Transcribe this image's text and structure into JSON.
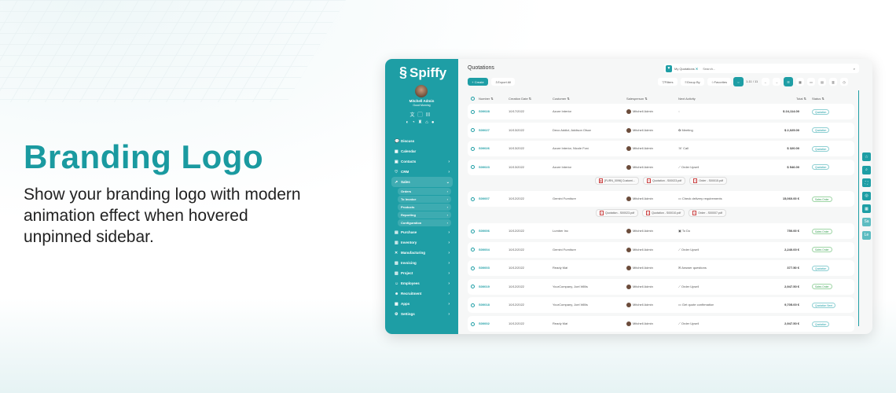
{
  "hero": {
    "title": "Branding Logo",
    "description": "Show your branding logo with modern animation effect when hovered unpinned sidebar."
  },
  "colors": {
    "accent": "#1e9ea5",
    "title": "#1a9aa0"
  },
  "sidebar": {
    "logo": "Spiffy",
    "user": "Mitchell Admin",
    "greeting": "Good Morning",
    "icons_row1": [
      "translate-icon",
      "lock-icon",
      "grid-icon"
    ],
    "icons_row2": [
      "chat-icon",
      "chat-bubble-icon",
      "gift-icon",
      "home-icon",
      "bulb-icon"
    ],
    "items": [
      {
        "label": "Discuss",
        "icon": "💬",
        "chev": ""
      },
      {
        "label": "Calendar",
        "icon": "▦",
        "chev": ""
      },
      {
        "label": "Contacts",
        "icon": "▣",
        "chev": "›"
      },
      {
        "label": "CRM",
        "icon": "♡",
        "chev": "›"
      },
      {
        "label": "Sales",
        "icon": "↗",
        "chev": "⌄",
        "open": true,
        "sub": [
          "Orders",
          "To Invoice",
          "Products",
          "Reporting",
          "Configuration"
        ]
      },
      {
        "label": "Purchase",
        "icon": "▤",
        "chev": "›"
      },
      {
        "label": "Inventory",
        "icon": "▥",
        "chev": "›"
      },
      {
        "label": "Manufacturing",
        "icon": "✕",
        "chev": "›"
      },
      {
        "label": "Invoicing",
        "icon": "▧",
        "chev": "›"
      },
      {
        "label": "Project",
        "icon": "▨",
        "chev": "›"
      },
      {
        "label": "Employees",
        "icon": "☺",
        "chev": "›"
      },
      {
        "label": "Recruitment",
        "icon": "☻",
        "chev": "›"
      },
      {
        "label": "Apps",
        "icon": "▩",
        "chev": "›"
      },
      {
        "label": "Settings",
        "icon": "⚙",
        "chev": "›"
      }
    ]
  },
  "header": {
    "title": "Quotations",
    "facet": "My Quotations",
    "search_placeholder": "Search...",
    "create": "+ Create",
    "export": "Export All",
    "filters": "Filters",
    "group_by": "Group By",
    "favorites": "Favorites",
    "pager": "1-11 / 11",
    "prev": "←",
    "next": "→"
  },
  "columns": [
    "Number",
    "Creation Date",
    "Customer",
    "Salesperson",
    "Next Activity",
    "Total",
    "Status"
  ],
  "rows": [
    {
      "num": "S00028",
      "date": "10/17/2022",
      "customer": "Azure Interior",
      "sp": "Mitchell Admin",
      "act": "",
      "act_icon": "clock-icon",
      "total": "$ 24,114.00",
      "status": "Quotation"
    },
    {
      "num": "S00027",
      "date": "10/13/2022",
      "customer": "Deco Addict, Addison Olson",
      "sp": "Mitchell Admin",
      "act": "Meeting",
      "act_icon": "meeting-icon",
      "total": "$ 2,025.00",
      "status": "Quotation"
    },
    {
      "num": "S00026",
      "date": "10/13/2022",
      "customer": "Azure Interior, Nicole Ford",
      "sp": "Mitchell Admin",
      "act": "Call",
      "act_icon": "phone-icon",
      "total": "$ 320.00",
      "status": "Quotation"
    },
    {
      "num": "S00023",
      "date": "10/13/2022",
      "customer": "Azure Interior",
      "sp": "Mitchell Admin",
      "act": "Order Upsell",
      "act_icon": "chart-icon",
      "total": "$ 546.00",
      "status": "Quotation",
      "attachments": [
        "[FURN_0096] Customi...",
        "Quotation - S00023.pdf",
        "Order - S00015.pdf"
      ]
    },
    {
      "num": "S00007",
      "date": "10/12/2022",
      "customer": "Gemini Furniture",
      "sp": "Mitchell Admin",
      "act": "Check delivery requirements",
      "act_icon": "calendar-icon",
      "total": "15,060.00 €",
      "status": "Sales Order",
      "attachments": [
        "Quotation - S00023.pdf",
        "Quotation - S00010.pdf",
        "Order - S00007.pdf"
      ]
    },
    {
      "num": "S00006",
      "date": "10/12/2022",
      "customer": "Lumber Inc",
      "sp": "Mitchell Admin",
      "act": "To Do",
      "act_icon": "todo-icon",
      "total": "750.00 €",
      "status": "Sales Order"
    },
    {
      "num": "S00004",
      "date": "10/12/2022",
      "customer": "Gemini Furniture",
      "sp": "Mitchell Admin",
      "act": "Order Upsell",
      "act_icon": "chart-icon",
      "total": "2,240.00 €",
      "status": "Sales Order"
    },
    {
      "num": "S00003",
      "date": "10/12/2022",
      "customer": "Ready Mat",
      "sp": "Mitchell Admin",
      "act": "Answer questions",
      "act_icon": "email-icon",
      "total": "377.50 €",
      "status": "Quotation"
    },
    {
      "num": "S00019",
      "date": "10/12/2022",
      "customer": "YourCompany, Joel Willis",
      "sp": "Mitchell Admin",
      "act": "Order Upsell",
      "act_icon": "chart-icon",
      "total": "2,947.50 €",
      "status": "Sales Order"
    },
    {
      "num": "S00018",
      "date": "10/12/2022",
      "customer": "YourCompany, Joel Willis",
      "sp": "Mitchell Admin",
      "act": "Get quote confirmation",
      "act_icon": "calendar-icon",
      "total": "9,705.00 €",
      "status": "Quotation Sent"
    },
    {
      "num": "S00002",
      "date": "10/12/2022",
      "customer": "Ready Mat",
      "sp": "Mitchell Admin",
      "act": "Order Upsell",
      "act_icon": "chart-icon",
      "total": "2,947.50 €",
      "status": "Quotation"
    }
  ],
  "right_tools": [
    {
      "icon": "☆",
      "name": "star"
    },
    {
      "icon": "⌕",
      "name": "search"
    },
    {
      "icon": "⛶",
      "name": "fullscreen"
    },
    {
      "icon": "◎",
      "name": "zoom"
    },
    {
      "icon": "▦",
      "name": "calculator"
    },
    {
      "icon": "Sa",
      "name": "sa"
    },
    {
      "icon": "Le",
      "name": "le"
    }
  ]
}
